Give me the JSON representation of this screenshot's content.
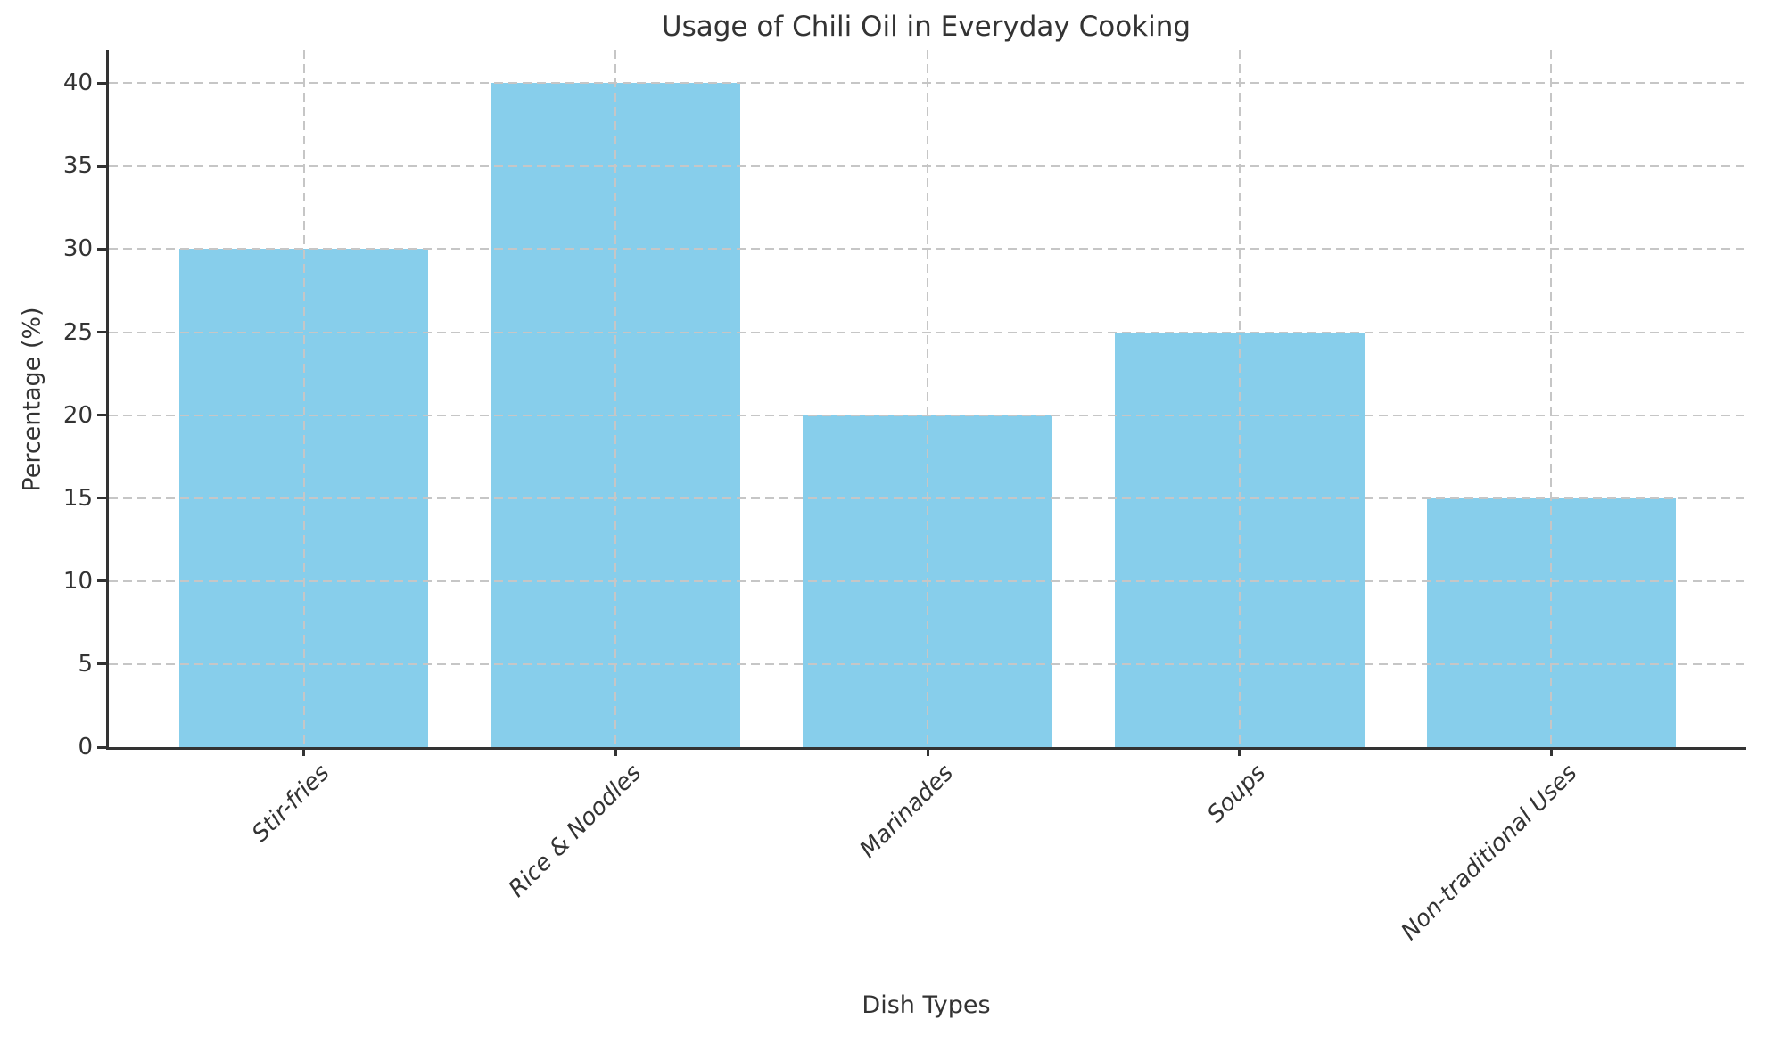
{
  "chart_data": {
    "type": "bar",
    "title": "Usage of Chili Oil in Everyday Cooking",
    "xlabel": "Dish Types",
    "ylabel": "Percentage (%)",
    "categories": [
      "Stir-fries",
      "Rice & Noodles",
      "Marinades",
      "Soups",
      "Non-traditional Uses"
    ],
    "values": [
      30,
      40,
      20,
      25,
      15
    ],
    "yticks": [
      0,
      5,
      10,
      15,
      20,
      25,
      30,
      35,
      40
    ],
    "ylim": [
      0,
      42
    ],
    "bar_color": "#87CEEB",
    "grid": true,
    "grid_color": "#c6c6c6",
    "axis_color": "#333333",
    "text_color": "#333333",
    "legend": "none",
    "bar_width_fraction": 0.8,
    "x_tick_label_rotation_deg": 45,
    "x_tick_label_style": "italic"
  }
}
